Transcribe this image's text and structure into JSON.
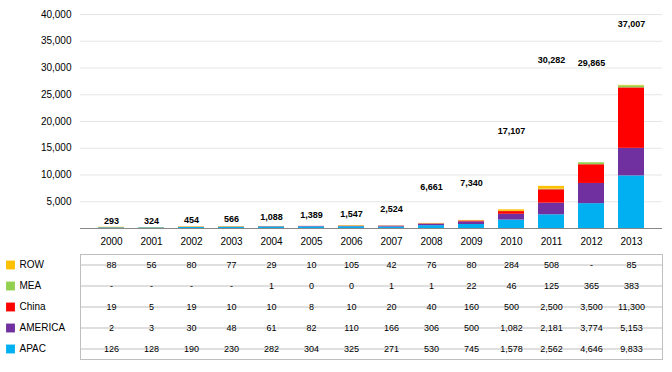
{
  "chart_data": {
    "type": "bar",
    "stacked": true,
    "grid": true,
    "categories": [
      "2000",
      "2001",
      "2002",
      "2003",
      "2004",
      "2005",
      "2006",
      "2007",
      "2008",
      "2009",
      "2010",
      "2011",
      "2012",
      "2013"
    ],
    "series": [
      {
        "name": "ROW",
        "color": "#FFC000",
        "values": [
          88,
          56,
          80,
          77,
          29,
          10,
          105,
          42,
          76,
          80,
          284,
          508,
          0,
          85
        ],
        "value_labels": [
          "88",
          "56",
          "80",
          "77",
          "29",
          "10",
          "105",
          "42",
          "76",
          "80",
          "284",
          "508",
          "-",
          "85"
        ]
      },
      {
        "name": "MEA",
        "color": "#92D050",
        "values": [
          0,
          0,
          0,
          0,
          1,
          0,
          0,
          1,
          1,
          22,
          46,
          125,
          365,
          383
        ],
        "value_labels": [
          "-",
          "-",
          "-",
          "-",
          "1",
          "0",
          "0",
          "1",
          "1",
          "22",
          "46",
          "125",
          "365",
          "383"
        ]
      },
      {
        "name": "China",
        "color": "#FF0000",
        "values": [
          19,
          5,
          19,
          10,
          10,
          8,
          10,
          20,
          40,
          160,
          500,
          2500,
          3500,
          11300
        ],
        "value_labels": [
          "19",
          "5",
          "19",
          "10",
          "10",
          "8",
          "10",
          "20",
          "40",
          "160",
          "500",
          "2,500",
          "3,500",
          "11,300"
        ]
      },
      {
        "name": "AMERICA",
        "color": "#7030A0",
        "values": [
          2,
          3,
          30,
          48,
          61,
          82,
          110,
          166,
          306,
          500,
          1082,
          2181,
          3774,
          5153
        ],
        "value_labels": [
          "2",
          "3",
          "30",
          "48",
          "61",
          "82",
          "110",
          "166",
          "306",
          "500",
          "1,082",
          "2,181",
          "3,774",
          "5,153"
        ]
      },
      {
        "name": "APAC",
        "color": "#00B0F0",
        "values": [
          126,
          128,
          190,
          230,
          282,
          304,
          325,
          271,
          530,
          745,
          1578,
          2562,
          4646,
          9833
        ],
        "value_labels": [
          "126",
          "128",
          "190",
          "230",
          "282",
          "304",
          "325",
          "271",
          "530",
          "745",
          "1,578",
          "2,562",
          "4,646",
          "9,833"
        ]
      }
    ],
    "totals": {
      "values": [
        293,
        324,
        454,
        566,
        1088,
        1389,
        1547,
        2524,
        6661,
        7340,
        17107,
        30282,
        29865,
        37007
      ],
      "value_labels": [
        "293",
        "324",
        "454",
        "566",
        "1,088",
        "1,389",
        "1,547",
        "2,524",
        "6,661",
        "7,340",
        "17,107",
        "30,282",
        "29,865",
        "37,007"
      ]
    },
    "ylim": [
      0,
      40000
    ],
    "yticks": [
      {
        "value": 5000,
        "label": "5,000"
      },
      {
        "value": 10000,
        "label": "10,000"
      },
      {
        "value": 15000,
        "label": "15,000"
      },
      {
        "value": 20000,
        "label": "20,000"
      },
      {
        "value": 25000,
        "label": "25,000"
      },
      {
        "value": 30000,
        "label": "30,000"
      },
      {
        "value": 35000,
        "label": "35,000"
      },
      {
        "value": 40000,
        "label": "40,000"
      }
    ]
  }
}
